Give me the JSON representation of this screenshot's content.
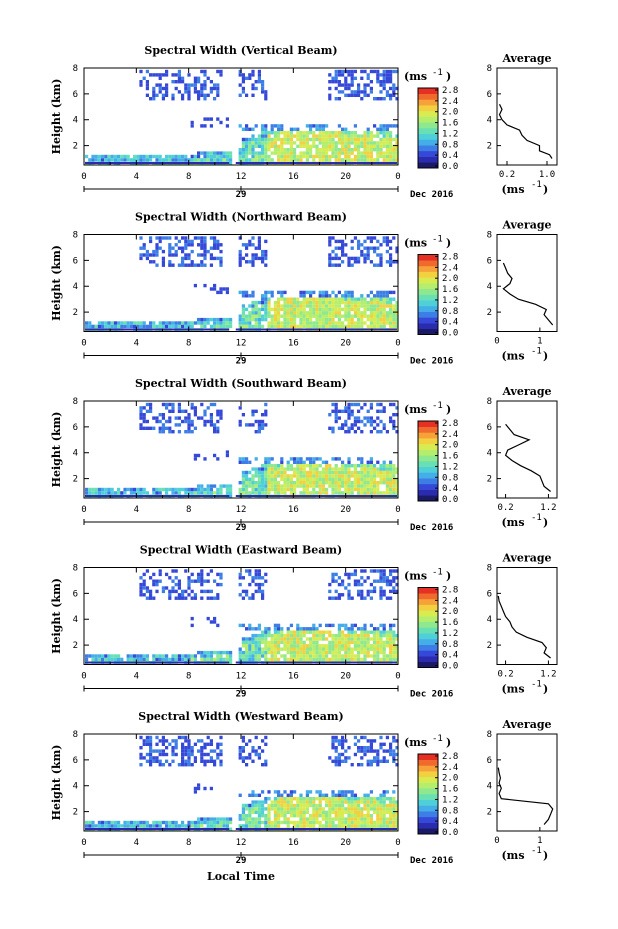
{
  "figure": {
    "date_label": "Dec 2016",
    "day_label": "29",
    "xlabel": "Local Time",
    "ylabel": "Height (km)",
    "cb_unit_base": "(ms",
    "cb_unit_exp": "-1",
    "avg_title": "Average",
    "colorscale": [
      "#1a1a66",
      "#2b2bb0",
      "#3548d8",
      "#3d7ee6",
      "#44aee8",
      "#4fd0d8",
      "#68e0b4",
      "#8ee890",
      "#b4ee6c",
      "#d8ec52",
      "#f2d040",
      "#f6a238",
      "#f06a2e",
      "#e63024"
    ]
  },
  "chart_data": [
    {
      "type": "heatmap",
      "title": "Spectral Width (Vertical Beam)",
      "xlabel": "Local Time",
      "ylabel": "Height (km)",
      "xlim": [
        0,
        24
      ],
      "ylim": [
        0.5,
        8
      ],
      "x_ticks": [
        "0",
        "4",
        "8",
        "12",
        "16",
        "20",
        "0"
      ],
      "y_ticks": [
        "2",
        "4",
        "6",
        "8"
      ],
      "colorbar_ticks": [
        "0.0",
        "0.4",
        "0.8",
        "1.2",
        "1.6",
        "2.0",
        "2.4",
        "2.8"
      ],
      "colorbar_range": [
        0,
        2.8
      ],
      "average_profile": {
        "title": "Average",
        "xlabel": "(ms-1)",
        "x_ticks": [
          "0.2",
          "1.0"
        ],
        "xlim": [
          0,
          1.2
        ],
        "height": [
          1.0,
          1.3,
          1.6,
          2.0,
          2.4,
          2.8,
          3.2,
          3.6,
          4.0,
          4.4,
          4.8,
          5.2
        ],
        "width": [
          1.1,
          1.05,
          0.85,
          0.85,
          0.6,
          0.5,
          0.45,
          0.2,
          0.1,
          0.05,
          0.1,
          0.05
        ]
      }
    },
    {
      "type": "heatmap",
      "title": "Spectral Width (Northward Beam)",
      "xlabel": "Local Time",
      "ylabel": "Height (km)",
      "xlim": [
        0,
        24
      ],
      "ylim": [
        0.5,
        8
      ],
      "x_ticks": [
        "0",
        "4",
        "8",
        "12",
        "16",
        "20",
        "0"
      ],
      "y_ticks": [
        "2",
        "4",
        "6",
        "8"
      ],
      "colorbar_ticks": [
        "0.0",
        "0.4",
        "0.8",
        "1.2",
        "1.6",
        "2.0",
        "2.4",
        "2.8"
      ],
      "colorbar_range": [
        0,
        2.8
      ],
      "average_profile": {
        "title": "Average",
        "xlabel": "(ms-1)",
        "x_ticks": [
          "0",
          "1"
        ],
        "xlim": [
          0,
          1.4
        ],
        "height": [
          1.0,
          1.4,
          1.8,
          2.2,
          2.6,
          3.0,
          3.4,
          3.8,
          4.2,
          4.6,
          5.0,
          5.4,
          5.8
        ],
        "width": [
          1.3,
          1.2,
          1.1,
          1.15,
          0.9,
          0.5,
          0.3,
          0.15,
          0.3,
          0.35,
          0.25,
          0.2,
          0.15
        ]
      }
    },
    {
      "type": "heatmap",
      "title": "Spectral Width (Southward Beam)",
      "xlabel": "Local Time",
      "ylabel": "Height (km)",
      "xlim": [
        0,
        24
      ],
      "ylim": [
        0.5,
        8
      ],
      "x_ticks": [
        "0",
        "4",
        "8",
        "12",
        "16",
        "20",
        "0"
      ],
      "y_ticks": [
        "2",
        "4",
        "6",
        "8"
      ],
      "colorbar_ticks": [
        "0.0",
        "0.4",
        "0.8",
        "1.2",
        "1.6",
        "2.0",
        "2.4",
        "2.8"
      ],
      "colorbar_range": [
        0,
        2.8
      ],
      "average_profile": {
        "title": "Average",
        "xlabel": "(ms-1)",
        "x_ticks": [
          "0.2",
          "1.2"
        ],
        "xlim": [
          0,
          1.4
        ],
        "height": [
          1.0,
          1.4,
          1.8,
          2.2,
          2.6,
          3.0,
          3.4,
          3.8,
          4.2,
          4.6,
          5.0,
          5.4,
          5.8,
          6.2
        ],
        "width": [
          1.25,
          1.1,
          1.05,
          1.0,
          0.8,
          0.55,
          0.35,
          0.2,
          0.25,
          0.5,
          0.75,
          0.4,
          0.3,
          0.2
        ]
      }
    },
    {
      "type": "heatmap",
      "title": "Spectral Width (Eastward Beam)",
      "xlabel": "Local Time",
      "ylabel": "Height (km)",
      "xlim": [
        0,
        24
      ],
      "ylim": [
        0.5,
        8
      ],
      "x_ticks": [
        "0",
        "4",
        "8",
        "12",
        "16",
        "20",
        "0"
      ],
      "y_ticks": [
        "2",
        "4",
        "6",
        "8"
      ],
      "colorbar_ticks": [
        "0.0",
        "0.4",
        "0.8",
        "1.2",
        "1.6",
        "2.0",
        "2.4",
        "2.8"
      ],
      "colorbar_range": [
        0,
        2.8
      ],
      "average_profile": {
        "title": "Average",
        "xlabel": "(ms-1)",
        "x_ticks": [
          "0.2",
          "1.2"
        ],
        "xlim": [
          0,
          1.4
        ],
        "height": [
          1.0,
          1.4,
          1.8,
          2.2,
          2.6,
          3.0,
          3.4,
          3.8,
          4.2,
          4.6,
          5.0,
          5.4,
          5.8
        ],
        "width": [
          1.25,
          1.1,
          1.15,
          1.05,
          0.7,
          0.45,
          0.35,
          0.3,
          0.2,
          0.15,
          0.1,
          0.05,
          0.03
        ]
      }
    },
    {
      "type": "heatmap",
      "title": "Spectral Width (Westward Beam)",
      "xlabel": "Local Time",
      "ylabel": "Height (km)",
      "xlim": [
        0,
        24
      ],
      "ylim": [
        0.5,
        8
      ],
      "x_ticks": [
        "0",
        "4",
        "8",
        "12",
        "16",
        "20",
        "0"
      ],
      "y_ticks": [
        "2",
        "4",
        "6",
        "8"
      ],
      "colorbar_ticks": [
        "0.0",
        "0.4",
        "0.8",
        "1.2",
        "1.6",
        "2.0",
        "2.4",
        "2.8"
      ],
      "colorbar_range": [
        0,
        2.8
      ],
      "average_profile": {
        "title": "Average",
        "xlabel": "(ms-1)",
        "x_ticks": [
          "0",
          "1"
        ],
        "xlim": [
          0,
          1.4
        ],
        "height": [
          1.0,
          1.4,
          1.8,
          2.2,
          2.6,
          3.0,
          3.4,
          3.8,
          4.2,
          4.6,
          5.0,
          5.4
        ],
        "width": [
          1.1,
          1.2,
          1.25,
          1.3,
          1.2,
          0.1,
          0.05,
          0.1,
          0.05,
          0.08,
          0.05,
          0.03
        ]
      }
    }
  ]
}
